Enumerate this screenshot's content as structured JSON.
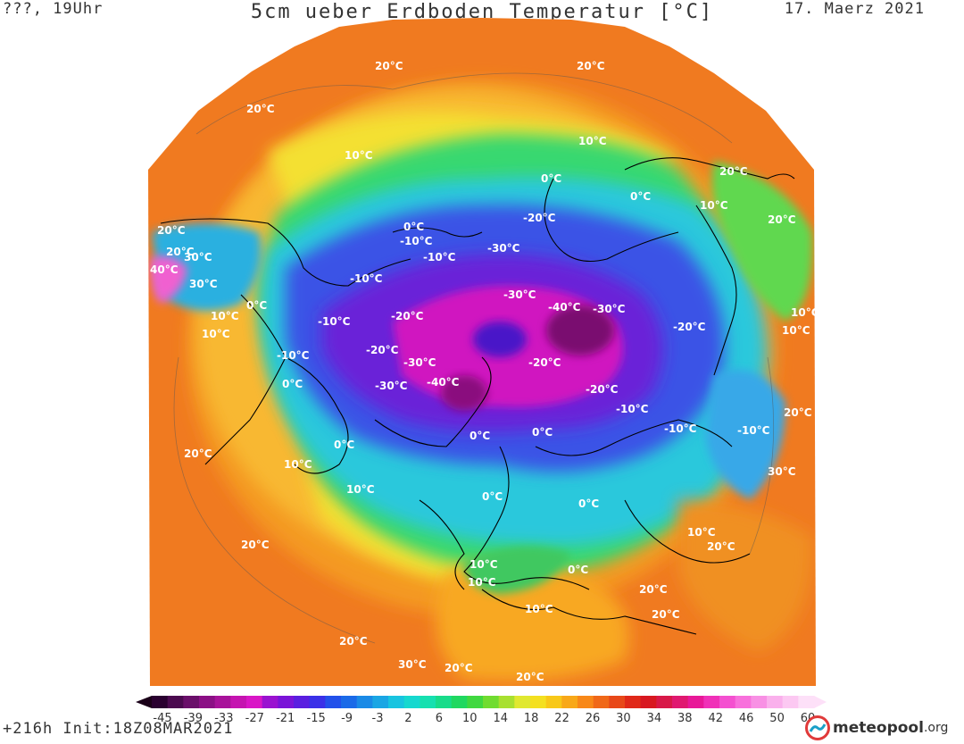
{
  "header": {
    "left": "???, 19Uhr",
    "title": "5cm ueber Erdboden Temperatur [°C]",
    "date": "17. Maerz 2021"
  },
  "footer": {
    "run_info": "+216h Init:18Z08MAR2021",
    "logo_brand": "meteopool",
    "logo_tld": ".org"
  },
  "colorbar": {
    "tick_labels": [
      "-45",
      "-39",
      "-33",
      "-27",
      "-21",
      "-15",
      "-9",
      "-3",
      "2",
      "6",
      "10",
      "14",
      "18",
      "22",
      "26",
      "30",
      "34",
      "38",
      "42",
      "46",
      "50",
      "60"
    ],
    "colors": [
      "#2a0030",
      "#4b0a4f",
      "#6a0f6a",
      "#8b0f85",
      "#a8129a",
      "#c514b0",
      "#d916c6",
      "#9a12d0",
      "#7a14d8",
      "#5a1ee0",
      "#3a30e8",
      "#2250ea",
      "#1a6ae8",
      "#1a8ae6",
      "#1aa6e4",
      "#18c4e0",
      "#16d8cf",
      "#16e0b0",
      "#18dc8a",
      "#20d860",
      "#40d840",
      "#70dc30",
      "#a8e030",
      "#e0e830",
      "#f4e020",
      "#f8c818",
      "#f8a818",
      "#f88818",
      "#f06818",
      "#e84818",
      "#e02818",
      "#d81820",
      "#d81848",
      "#e01870",
      "#e81898",
      "#f030b8",
      "#f450d0",
      "#f870dc",
      "#f890e4",
      "#fab0ec",
      "#fcc8f2",
      "#fde0f8"
    ]
  },
  "map": {
    "projection": "polar stereographic, Northern Hemisphere",
    "colors": {
      "ocean_tropical": "#f07a20",
      "ocean_midlat": "#f8b030",
      "atlantic_band": "#f4e830",
      "green_band": "#40d860",
      "cyan_land": "#2ec8e0",
      "blue_land": "#3050e8",
      "violet_land": "#6a18d8",
      "magenta_core": "#d018c0",
      "deep_core": "#7a0c70",
      "coast": "#000000"
    },
    "isotherm_labels": [
      "20°C",
      "20°C",
      "20°C",
      "10°C",
      "10°C",
      "0°C",
      "0°C",
      "10°C",
      "20°C",
      "20°C",
      "20°C",
      "30°C",
      "40°C",
      "30°C",
      "-10°C",
      "0°C",
      "-10°C",
      "-10°C",
      "-30°C",
      "-20°C",
      "-40°C",
      "-30°C",
      "-20°C",
      "-30°C",
      "-10°C",
      "0°C",
      "10°C",
      "10°C",
      "0°C",
      "-10°C",
      "-20°C",
      "-40°C",
      "-30°C",
      "-30°C",
      "-20°C",
      "-20°C",
      "-10°C",
      "0°C",
      "0°C",
      "0°C",
      "10°C",
      "10°C",
      "20°C",
      "20°C",
      "20°C",
      "30°C",
      "20°C",
      "20°C",
      "0°C",
      "0°C",
      "10°C",
      "10°C",
      "0°C",
      "10°C",
      "20°C",
      "20°C",
      "30°C",
      "20°C",
      "10°C",
      "10°C",
      "20°C",
      "-10°C",
      "-10°C",
      "-20°C",
      "10°C",
      "20°C"
    ]
  }
}
